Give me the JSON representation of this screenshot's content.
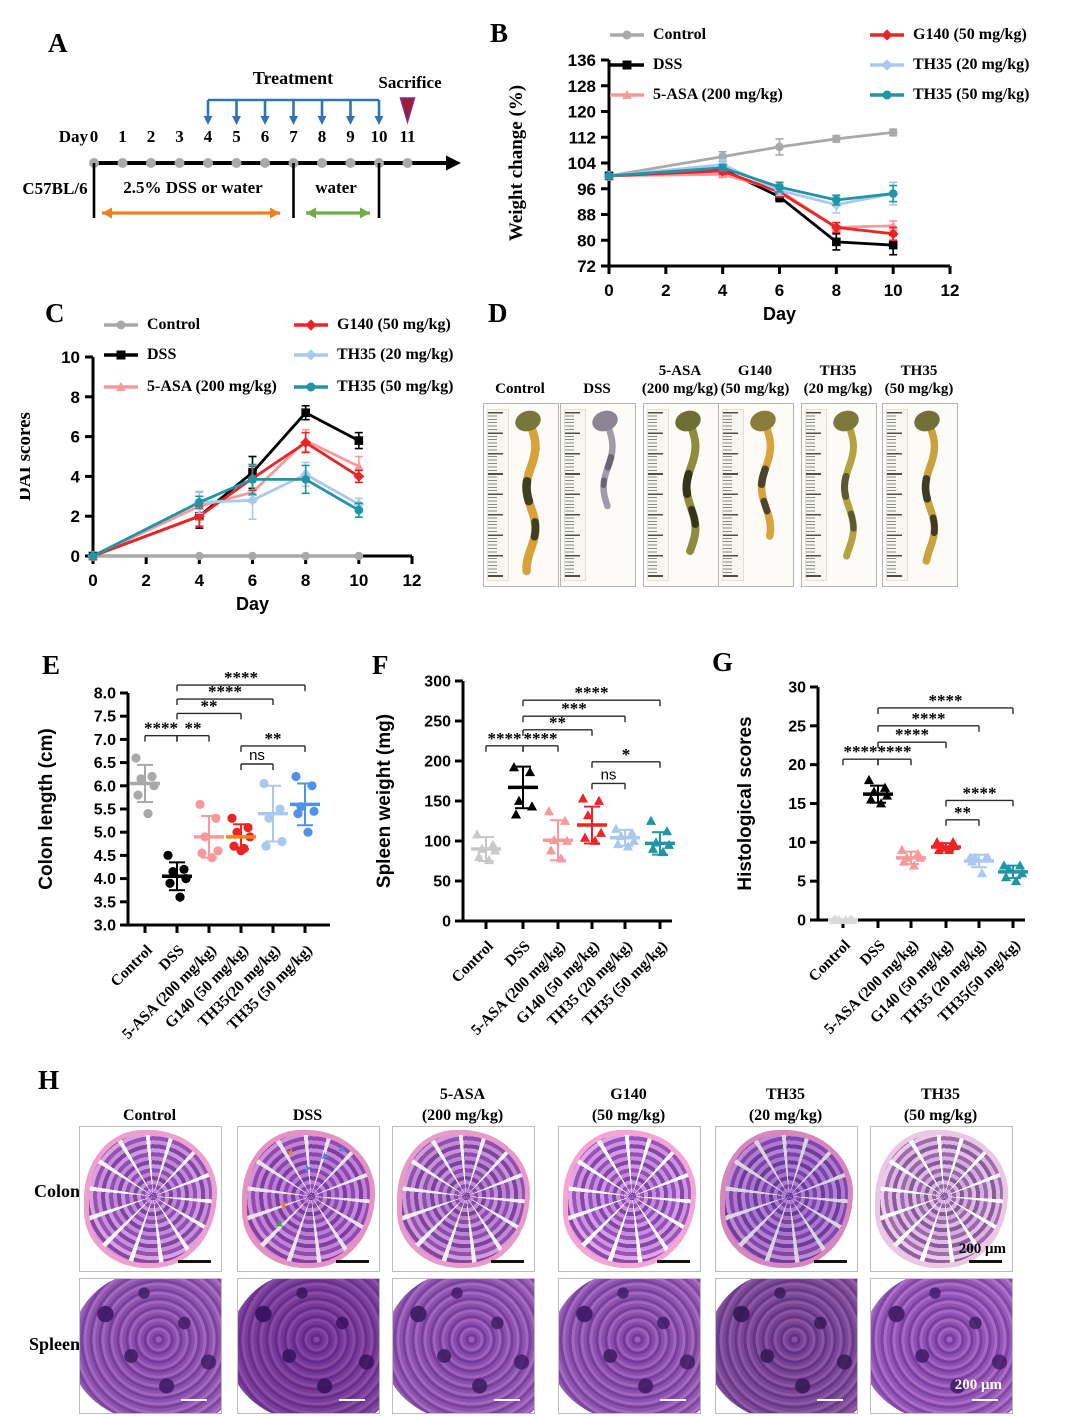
{
  "panelA": {
    "label": "A",
    "treatment_label": "Treatment",
    "sacrifice_label": "Sacrifice",
    "day_label": "Day",
    "days": [
      "0",
      "1",
      "2",
      "3",
      "4",
      "5",
      "6",
      "7",
      "8",
      "9",
      "10",
      "11"
    ],
    "strain_label": "C57BL/6",
    "dss_phase_label": "2.5% DSS or water",
    "water_phase_label": "water",
    "colors": {
      "treatment_arrows": "#2e75b6",
      "dss_arrow": "#f08122",
      "water_arrow": "#6fad47",
      "sacrifice_marker": "#9e1b32"
    }
  },
  "panelB": {
    "label": "B",
    "chart_data": {
      "type": "line",
      "x": [
        0,
        4,
        6,
        8,
        10
      ],
      "xlim": [
        0,
        12
      ],
      "ylim": [
        72,
        136
      ],
      "xticks": [
        0,
        2,
        4,
        6,
        8,
        10,
        12
      ],
      "xtick_labels": [
        "0",
        "2",
        "4",
        "6",
        "8",
        "10",
        "12"
      ],
      "yticks": [
        72,
        80,
        88,
        96,
        104,
        112,
        120,
        128,
        136
      ],
      "ytick_labels": [
        "72",
        "80",
        "88",
        "96",
        "104",
        "112",
        "120",
        "128",
        "136"
      ],
      "xlabel": "Day",
      "ylabel": "Weight change (%)",
      "series": [
        {
          "name": "Control",
          "color": "#a9a9a9",
          "marker": "circle",
          "values": [
            100,
            106,
            109,
            111.5,
            113.5
          ],
          "err": [
            0.5,
            1.5,
            2.5,
            1,
            1
          ]
        },
        {
          "name": "DSS",
          "color": "#000000",
          "marker": "square",
          "values": [
            100,
            102,
            93.5,
            79.5,
            78.5
          ],
          "err": [
            0.5,
            1,
            1.5,
            2.5,
            3
          ]
        },
        {
          "name": "5-ASA (200 mg/kg)",
          "color": "#f9999b",
          "marker": "triangle",
          "values": [
            100,
            100.5,
            95.5,
            84,
            84.5
          ],
          "err": [
            0.5,
            1,
            2,
            1.5,
            1.5
          ]
        },
        {
          "name": "G140 (50 mg/kg)",
          "color": "#ec2426",
          "marker": "diamond",
          "values": [
            100,
            101.5,
            95,
            84,
            82
          ],
          "err": [
            0.5,
            1,
            1.5,
            1.5,
            2
          ]
        },
        {
          "name": "TH35 (20 mg/kg)",
          "color": "#a9c9f0",
          "marker": "diamond",
          "values": [
            100,
            103.5,
            95.5,
            91,
            94.5
          ],
          "err": [
            0.5,
            1.5,
            1.5,
            2.5,
            3.5
          ]
        },
        {
          "name": "TH35 (50 mg/kg)",
          "color": "#1f95a5",
          "marker": "circle",
          "values": [
            100,
            102.5,
            96.5,
            92.5,
            94.5
          ],
          "err": [
            0.5,
            1,
            1.5,
            1.5,
            2.5
          ]
        }
      ]
    }
  },
  "panelC": {
    "label": "C",
    "chart_data": {
      "type": "line",
      "x": [
        0,
        4,
        6,
        8,
        10
      ],
      "xlim": [
        0,
        12
      ],
      "ylim": [
        0,
        10
      ],
      "xticks": [
        0,
        2,
        4,
        6,
        8,
        10,
        12
      ],
      "xtick_labels": [
        "0",
        "2",
        "4",
        "6",
        "8",
        "10",
        "12"
      ],
      "yticks": [
        0,
        2,
        4,
        6,
        8,
        10
      ],
      "ytick_labels": [
        "0",
        "2",
        "4",
        "6",
        "8",
        "10"
      ],
      "xlabel": "Day",
      "ylabel": "DAI scores",
      "series": [
        {
          "name": "Control",
          "color": "#a9a9a9",
          "marker": "circle",
          "values": [
            0,
            0,
            0,
            0,
            0
          ],
          "err": [
            0,
            0,
            0,
            0,
            0
          ]
        },
        {
          "name": "DSS",
          "color": "#000000",
          "marker": "square",
          "values": [
            0,
            2,
            4.2,
            7.2,
            5.8
          ],
          "err": [
            0,
            0.6,
            0.8,
            0.35,
            0.4
          ]
        },
        {
          "name": "5-ASA (200 mg/kg)",
          "color": "#f9999b",
          "marker": "triangle",
          "values": [
            0,
            2.5,
            3.2,
            5.8,
            4.5
          ],
          "err": [
            0,
            0.7,
            0.5,
            0.55,
            0.5
          ]
        },
        {
          "name": "G140 (50 mg/kg)",
          "color": "#ec2426",
          "marker": "diamond",
          "values": [
            0,
            2,
            3.9,
            5.7,
            4
          ],
          "err": [
            0,
            0.5,
            0.6,
            0.5,
            0.3
          ]
        },
        {
          "name": "TH35 (20 mg/kg)",
          "color": "#a9c9f0",
          "marker": "diamond",
          "values": [
            0,
            2.7,
            2.8,
            4.1,
            2.6
          ],
          "err": [
            0,
            0.55,
            0.95,
            0.6,
            0.3
          ]
        },
        {
          "name": "TH35 (50 mg/kg)",
          "color": "#1f95a5",
          "marker": "circle",
          "values": [
            0,
            2.7,
            3.85,
            3.85,
            2.3
          ],
          "err": [
            0,
            0.3,
            0.75,
            0.7,
            0.35
          ]
        }
      ]
    }
  },
  "panelD": {
    "label": "D",
    "groups": [
      {
        "line1": "Control",
        "line2": "",
        "photo": {
          "len": 0.92,
          "w": 8.5,
          "body": "#d8a13a",
          "dark": "#3f3f22",
          "blob": "#77773a"
        }
      },
      {
        "line1": "DSS",
        "line2": "",
        "photo": {
          "len": 0.52,
          "w": 6.5,
          "body": "#a29aa8",
          "dark": "#6c6275",
          "blob": "#8d8494"
        }
      },
      {
        "line1": "5-ASA",
        "line2": "(200 mg/kg)",
        "photo": {
          "len": 0.8,
          "w": 8,
          "body": "#8f8a3c",
          "dark": "#35351f",
          "blob": "#6f6f35"
        }
      },
      {
        "line1": "G140",
        "line2": "(50 mg/kg)",
        "photo": {
          "len": 0.72,
          "w": 7.5,
          "body": "#d8a33c",
          "dark": "#4a442a",
          "blob": "#8a7d3a"
        }
      },
      {
        "line1": "TH35",
        "line2": "(20 mg/kg)",
        "photo": {
          "len": 0.84,
          "w": 7,
          "body": "#b5a23e",
          "dark": "#5c5830",
          "blob": "#7b7a3b"
        }
      },
      {
        "line1": "TH35",
        "line2": "(50 mg/kg)",
        "photo": {
          "len": 0.88,
          "w": 7.5,
          "body": "#c9a23d",
          "dark": "#3e3c24",
          "blob": "#72703a"
        }
      }
    ]
  },
  "panelE": {
    "label": "E",
    "chart_data": {
      "type": "scatter",
      "ylabel": "Colon length (cm)",
      "ylim": [
        3,
        8
      ],
      "yticks": [
        3,
        3.5,
        4,
        4.5,
        5,
        5.5,
        6,
        6.5,
        7,
        7.5,
        8
      ],
      "ytick_labels": [
        "3.0",
        "3.5",
        "4.0",
        "4.5",
        "5.0",
        "5.5",
        "6.0",
        "6.5",
        "7.0",
        "7.5",
        "8.0"
      ],
      "categories": [
        "Control",
        "DSS",
        "5-ASA (200 mg/kg)",
        "G140 (50 mg/kg)",
        "TH35(20 mg/kg)",
        "TH35 (50 mg/kg)"
      ],
      "groups": [
        {
          "name": "Control",
          "color": "#a9a9a9",
          "marker": "circle",
          "points": [
            6.6,
            6.2,
            6.15,
            6,
            5.8,
            5.4
          ],
          "mean": 6.05,
          "sd": 0.4
        },
        {
          "name": "DSS",
          "color": "#000000",
          "marker": "circle",
          "points": [
            4.5,
            4.2,
            4.15,
            4,
            3.9,
            3.6
          ],
          "mean": 4.05,
          "sd": 0.3
        },
        {
          "name": "5-ASA (200 mg/kg)",
          "color": "#f9999b",
          "marker": "circle",
          "points": [
            5.6,
            5.3,
            4.9,
            4.6,
            4.55,
            4.45
          ],
          "mean": 4.9,
          "sd": 0.45
        },
        {
          "name": "G140 (50 mg/kg)",
          "color": "#ec2426",
          "marker": "circle",
          "points": [
            5.3,
            5.1,
            5,
            4.9,
            4.7,
            4.65,
            4.6
          ],
          "mean": 4.9,
          "sd": 0.27,
          "mean_color": "#f58220"
        },
        {
          "name": "TH35 (20 mg/kg)",
          "color": "#a9c9f0",
          "marker": "circle",
          "points": [
            6.05,
            5.5,
            5.3,
            4.8,
            4.7
          ],
          "mean": 5.4,
          "sd": 0.6
        },
        {
          "name": "TH35 (50 mg/kg)",
          "color": "#4f93e8",
          "marker": "circle",
          "points": [
            6.2,
            6,
            5.55,
            5.45,
            5.4,
            5
          ],
          "mean": 5.6,
          "sd": 0.45
        }
      ],
      "significance": [
        {
          "a": 0,
          "b": 1,
          "label": "****",
          "y": 7.08
        },
        {
          "a": 1,
          "b": 2,
          "label": "**",
          "y": 7.08
        },
        {
          "a": 1,
          "b": 3,
          "label": "**",
          "y": 7.56
        },
        {
          "a": 1,
          "b": 4,
          "label": "****",
          "y": 7.87
        },
        {
          "a": 1,
          "b": 5,
          "label": "****",
          "y": 8.17
        },
        {
          "a": 3,
          "b": 5,
          "label": "**",
          "y": 6.86
        },
        {
          "a": 3,
          "b": 4,
          "label": "ns",
          "y": 6.47
        }
      ]
    }
  },
  "panelF": {
    "label": "F",
    "chart_data": {
      "type": "scatter",
      "ylabel": "Spleen weight (mg)",
      "ylim": [
        0,
        300
      ],
      "yticks": [
        0,
        50,
        100,
        150,
        200,
        250,
        300
      ],
      "ytick_labels": [
        "0",
        "50",
        "100",
        "150",
        "200",
        "250",
        "300"
      ],
      "categories": [
        "Control",
        "DSS",
        "5-ASA (200 mg/kg)",
        "G140 (50 mg/kg)",
        "TH35 (20 mg/kg)",
        "TH35 (50 mg/kg)"
      ],
      "groups": [
        {
          "name": "Control",
          "color": "#c9c9c9",
          "marker": "triangle",
          "points": [
            108,
            95,
            90,
            88,
            80,
            76
          ],
          "mean": 90,
          "sd": 15
        },
        {
          "name": "DSS",
          "color": "#000000",
          "marker": "triangle",
          "points": [
            192,
            186,
            150,
            143,
            133
          ],
          "mean": 167,
          "sd": 26
        },
        {
          "name": "5-ASA (200 mg/kg)",
          "color": "#f9999b",
          "marker": "triangle",
          "points": [
            137,
            125,
            101,
            100,
            88,
            78
          ],
          "mean": 101,
          "sd": 25
        },
        {
          "name": "G140 (50 mg/kg)",
          "color": "#ec2426",
          "marker": "triangle",
          "points": [
            153,
            150,
            132,
            110,
            104,
            100
          ],
          "mean": 120,
          "sd": 23
        },
        {
          "name": "TH35 (20 mg/kg)",
          "color": "#a9c9f0",
          "marker": "triangle",
          "points": [
            115,
            110,
            106,
            100,
            96,
            93
          ],
          "mean": 104,
          "sd": 10
        },
        {
          "name": "TH35 (50 mg/kg)",
          "color": "#1f95a5",
          "marker": "triangle",
          "points": [
            125,
            112,
            98,
            95,
            90,
            86
          ],
          "mean": 97,
          "sd": 14
        }
      ],
      "significance": [
        {
          "a": 0,
          "b": 1,
          "label": "****",
          "y": 219
        },
        {
          "a": 1,
          "b": 2,
          "label": "****",
          "y": 219
        },
        {
          "a": 1,
          "b": 3,
          "label": "**",
          "y": 239
        },
        {
          "a": 1,
          "b": 4,
          "label": "***",
          "y": 256
        },
        {
          "a": 1,
          "b": 5,
          "label": "****",
          "y": 276
        },
        {
          "a": 3,
          "b": 5,
          "label": "*",
          "y": 199
        },
        {
          "a": 3,
          "b": 4,
          "label": "ns",
          "y": 172
        }
      ]
    }
  },
  "panelG": {
    "label": "G",
    "chart_data": {
      "type": "scatter",
      "ylabel": "Histological scores",
      "ylim": [
        0,
        30
      ],
      "yticks": [
        0,
        5,
        10,
        15,
        20,
        25,
        30
      ],
      "ytick_labels": [
        "0",
        "5",
        "10",
        "15",
        "20",
        "25",
        "30"
      ],
      "categories": [
        "Control",
        "DSS",
        "5-ASA (200 mg/kg)",
        "G140 (50 mg/kg)",
        "TH35 (20 mg/kg)",
        "TH35(50 mg/kg)"
      ],
      "groups": [
        {
          "name": "Control",
          "color": "#d9d9d9",
          "marker": "triangle",
          "points": [
            0,
            0,
            0,
            0,
            0,
            0
          ],
          "mean": 0,
          "sd": 0
        },
        {
          "name": "DSS",
          "color": "#000000",
          "marker": "triangle",
          "points": [
            18,
            17,
            16.5,
            16,
            15.5,
            15
          ],
          "mean": 16.2,
          "sd": 1.1
        },
        {
          "name": "5-ASA (200 mg/kg)",
          "color": "#f9999b",
          "marker": "triangle",
          "points": [
            9,
            8.5,
            8,
            8,
            7.5,
            7
          ],
          "mean": 8,
          "sd": 0.8
        },
        {
          "name": "G140 (50 mg/kg)",
          "color": "#ec2426",
          "marker": "triangle",
          "points": [
            10,
            10,
            9.5,
            9.5,
            9,
            9
          ],
          "mean": 9.4,
          "sd": 0.5
        },
        {
          "name": "TH35 (20 mg/kg)",
          "color": "#a9c9f0",
          "marker": "triangle",
          "points": [
            8,
            8,
            8,
            8,
            7.5,
            6
          ],
          "mean": 7.6,
          "sd": 0.8
        },
        {
          "name": "TH35 (50 mg/kg)",
          "color": "#1f95a5",
          "marker": "triangle",
          "points": [
            7,
            7,
            6.5,
            6,
            5.5,
            5
          ],
          "mean": 6.2,
          "sd": 0.8
        }
      ],
      "significance": [
        {
          "a": 0,
          "b": 1,
          "label": "****",
          "y": 20.7
        },
        {
          "a": 1,
          "b": 2,
          "label": "****",
          "y": 20.7
        },
        {
          "a": 1,
          "b": 3,
          "label": "****",
          "y": 22.9
        },
        {
          "a": 1,
          "b": 4,
          "label": "****",
          "y": 25
        },
        {
          "a": 1,
          "b": 5,
          "label": "****",
          "y": 27.3
        },
        {
          "a": 3,
          "b": 4,
          "label": "**",
          "y": 12.9
        },
        {
          "a": 3,
          "b": 5,
          "label": "****",
          "y": 15.4
        }
      ]
    }
  },
  "panelH": {
    "label": "H",
    "row_labels": [
      "Colon",
      "Spleen"
    ],
    "scalebar_label": "200 μm",
    "col_headers": [
      {
        "line1": "Control",
        "line2": ""
      },
      {
        "line1": "DSS",
        "line2": ""
      },
      {
        "line1": "5-ASA",
        "line2": "(200 mg/kg)"
      },
      {
        "line1": "G140",
        "line2": "(50 mg/kg)"
      },
      {
        "line1": "TH35",
        "line2": "(20 mg/kg)"
      },
      {
        "line1": "TH35",
        "line2": "(50 mg/kg)"
      }
    ],
    "annotation_colors": {
      "blue": "#4a86e8",
      "orange": "#ed7d31",
      "green": "#34a853"
    }
  }
}
